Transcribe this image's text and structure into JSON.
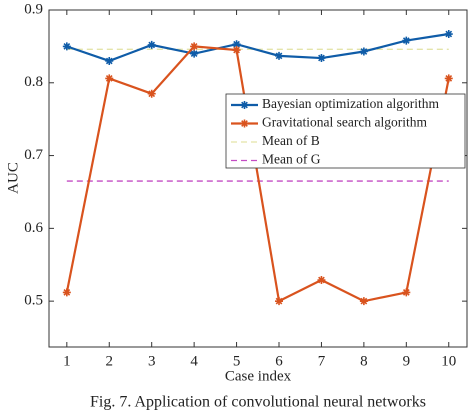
{
  "chart_data": {
    "type": "line",
    "x_label": "Case index",
    "y_label": "AUC",
    "caption": "Fig. 7.   Application of convolutional neural networks",
    "x": [
      1,
      2,
      3,
      4,
      5,
      6,
      7,
      8,
      9,
      10
    ],
    "series": [
      {
        "name": "Bayesian optimization algorithm",
        "color": "#0f5ca8",
        "values": [
          0.85,
          0.83,
          0.852,
          0.84,
          0.853,
          0.837,
          0.834,
          0.843,
          0.858,
          0.867
        ]
      },
      {
        "name": "Gravitational search algorithm",
        "color": "#d9531e",
        "values": [
          0.512,
          0.806,
          0.785,
          0.85,
          0.845,
          0.5,
          0.529,
          0.5,
          0.512,
          0.806
        ]
      }
    ],
    "reference_lines": [
      {
        "name": "Mean of B",
        "value": 0.846,
        "color": "#e4e4a8"
      },
      {
        "name": "Mean of G",
        "value": 0.665,
        "color": "#c44cc4"
      }
    ],
    "xlim": [
      0.58,
      10.43
    ],
    "ylim": [
      0.437,
      0.9
    ],
    "xticks": [
      1,
      2,
      3,
      4,
      5,
      6,
      7,
      8,
      9,
      10
    ],
    "yticks": [
      0.5,
      0.6,
      0.7,
      0.8,
      0.9
    ]
  }
}
